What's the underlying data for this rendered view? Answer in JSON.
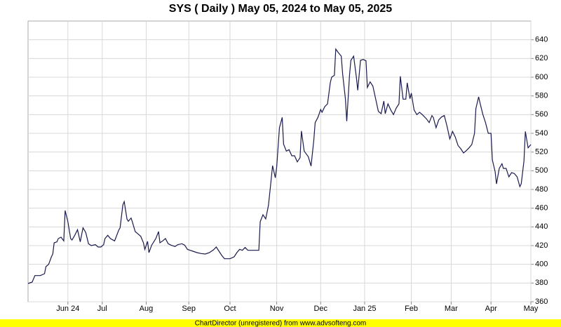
{
  "chart_data": {
    "type": "line",
    "title": "SYS ( Daily ) May 05, 2024 to May 05, 2025",
    "footer": "ChartDirector (unregistered) from www.advsofteng.com",
    "color": "#1a1a4e",
    "grid": true,
    "xlim": [
      0,
      366
    ],
    "ylim": [
      360,
      660
    ],
    "yticks": [
      360,
      380,
      400,
      420,
      440,
      460,
      480,
      500,
      520,
      540,
      560,
      580,
      600,
      620,
      640
    ],
    "xticks": [
      {
        "value": 29,
        "label": "Jun 24"
      },
      {
        "value": 54,
        "label": "Jul"
      },
      {
        "value": 86,
        "label": "Aug"
      },
      {
        "value": 117,
        "label": "Sep"
      },
      {
        "value": 147,
        "label": "Oct"
      },
      {
        "value": 181,
        "label": "Nov"
      },
      {
        "value": 213,
        "label": "Dec"
      },
      {
        "value": 245,
        "label": "Jan 25"
      },
      {
        "value": 279,
        "label": "Feb"
      },
      {
        "value": 308,
        "label": "Mar"
      },
      {
        "value": 337,
        "label": "Apr"
      },
      {
        "value": 366,
        "label": "May"
      }
    ],
    "x": [
      0,
      3,
      5,
      9,
      12,
      13,
      15,
      17,
      18,
      19,
      21,
      22,
      24,
      26,
      27,
      29,
      31,
      32,
      34,
      36,
      38,
      40,
      42,
      44,
      46,
      49,
      51,
      53,
      55,
      56,
      58,
      60,
      63,
      66,
      67,
      69,
      70,
      72,
      73,
      75,
      76,
      78,
      80,
      82,
      84,
      85,
      87,
      88,
      90,
      93,
      95,
      96,
      98,
      100,
      102,
      104,
      107,
      109,
      112,
      114,
      116,
      118,
      120,
      123,
      126,
      129,
      132,
      135,
      137,
      139,
      141,
      143,
      147,
      150,
      152,
      154,
      156,
      158,
      160,
      164,
      168,
      169,
      171,
      173,
      175,
      177,
      178,
      180,
      181,
      183,
      185,
      186,
      188,
      190,
      192,
      194,
      196,
      198,
      199,
      201,
      203,
      204,
      206,
      208,
      209,
      211,
      213,
      214,
      216,
      218,
      220,
      221,
      223,
      224,
      226,
      228,
      229,
      231,
      232,
      234,
      235,
      237,
      239,
      240,
      242,
      244,
      246,
      247,
      249,
      251,
      253,
      255,
      257,
      259,
      260,
      262,
      264,
      266,
      268,
      270,
      271,
      273,
      275,
      276,
      278,
      279,
      281,
      283,
      285,
      287,
      290,
      292,
      294,
      295,
      297,
      299,
      301,
      303,
      305,
      307,
      309,
      311,
      313,
      315,
      317,
      319,
      321,
      323,
      325,
      326,
      328,
      329,
      331,
      333,
      335,
      337,
      338,
      340,
      341,
      343,
      345,
      346,
      348,
      350,
      352,
      354,
      356,
      358,
      359,
      361,
      362,
      364,
      366
    ],
    "values": [
      379.5,
      381,
      388,
      388,
      390,
      397.5,
      400,
      408,
      411,
      423,
      424,
      427.5,
      429,
      425,
      457.5,
      445.5,
      427.5,
      426,
      431,
      437,
      424,
      439,
      434,
      422,
      420,
      421,
      418.5,
      418.5,
      421,
      427.5,
      431,
      427.5,
      425,
      436.5,
      439,
      463.5,
      467,
      448.5,
      446,
      449.5,
      445,
      435,
      432.5,
      430,
      423,
      416,
      424.5,
      412.5,
      420.5,
      427.5,
      435,
      423,
      425,
      427.5,
      422,
      420.5,
      419,
      421,
      422,
      420.5,
      416,
      415,
      414,
      412.5,
      411.5,
      411,
      412.5,
      415.5,
      418.5,
      414,
      409.5,
      406,
      406,
      408,
      412.5,
      416,
      415,
      418,
      415,
      415,
      415,
      445.5,
      453,
      448.5,
      463,
      491,
      505.5,
      492.5,
      504,
      546,
      557,
      528.5,
      521,
      522.5,
      516,
      516,
      509.5,
      514,
      542.5,
      521,
      517,
      515,
      505,
      532.5,
      551.5,
      557,
      565.5,
      562.5,
      568.5,
      571.5,
      594,
      600,
      602,
      630,
      626,
      622.5,
      603.5,
      577,
      553,
      602,
      618,
      622.5,
      600,
      586,
      618,
      619,
      617.5,
      589,
      595,
      590.5,
      577,
      563.5,
      561,
      574.5,
      561,
      571.5,
      565,
      560,
      567,
      571.5,
      601,
      576.5,
      576.5,
      594,
      577,
      583,
      565,
      560,
      562.5,
      560,
      555.5,
      551.5,
      559,
      557,
      546,
      554.5,
      557.5,
      559,
      547.5,
      534,
      542,
      536,
      527,
      523.5,
      519,
      521.5,
      524.5,
      528,
      540,
      566.5,
      579,
      572.5,
      560.5,
      551.5,
      540,
      540,
      511.5,
      499,
      486,
      502.5,
      507.5,
      502.5,
      502.5,
      493.5,
      498,
      497,
      493.5,
      483,
      486,
      510.5,
      542,
      524.5,
      528
    ]
  }
}
